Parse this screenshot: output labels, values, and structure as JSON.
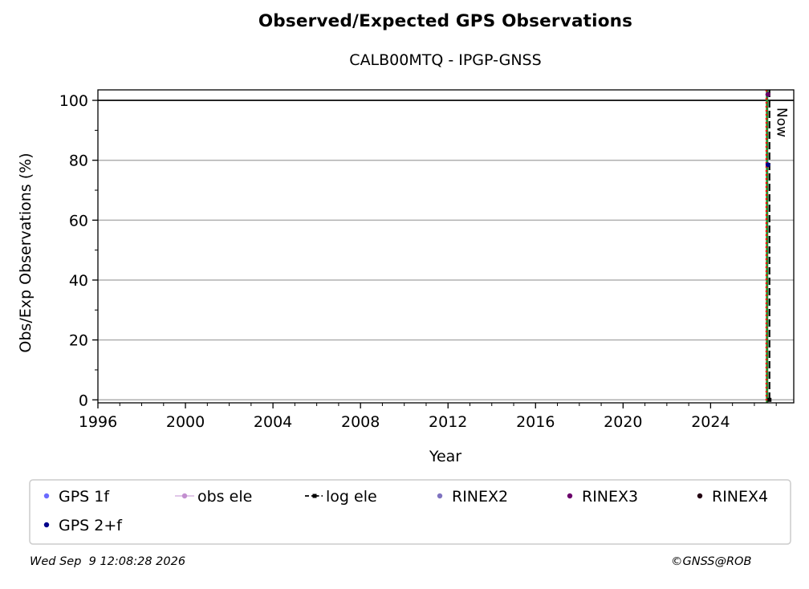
{
  "chart_data": {
    "type": "scatter",
    "title": "Observed/Expected GPS Observations",
    "subtitle": "CALB00MTQ - IPGP-GNSS",
    "xlabel": "Year",
    "ylabel": "Obs/Exp Observations (%)",
    "xlim": [
      1996,
      2027.8
    ],
    "ylim": [
      -1,
      103.5
    ],
    "x_ticks": [
      1996,
      2000,
      2004,
      2008,
      2012,
      2016,
      2020,
      2024
    ],
    "y_ticks": [
      0,
      20,
      40,
      60,
      80,
      100
    ],
    "grid": "horizontal",
    "reference_line": 100,
    "now_label": "Now",
    "now_x": 2026.69,
    "event_lines": [
      {
        "x": 2026.58,
        "color": "#2e8b2e",
        "style": "solid"
      },
      {
        "x": 2026.55,
        "color": "#ff0000",
        "style": "dotted"
      },
      {
        "x": 2026.69,
        "color": "#000000",
        "style": "dashed"
      }
    ],
    "series": [
      {
        "name": "GPS 1f",
        "color": "#6b6bff",
        "marker": "dot",
        "x": [],
        "y": []
      },
      {
        "name": "obs ele",
        "color": "#c38fd0",
        "marker": "dot-line",
        "x": [],
        "y": []
      },
      {
        "name": "log ele",
        "color": "#000000",
        "marker": "dash-dot-line",
        "x": [
          2026.69
        ],
        "y": [
          0
        ]
      },
      {
        "name": "RINEX2",
        "color": "#7f73c0",
        "marker": "dot",
        "x": [],
        "y": []
      },
      {
        "name": "RINEX3",
        "color": "#6b006b",
        "marker": "dot",
        "x": [
          2026.62
        ],
        "y": [
          102
        ]
      },
      {
        "name": "RINEX4",
        "color": "#220011",
        "marker": "dot",
        "x": [],
        "y": []
      },
      {
        "name": "GPS 2+f",
        "color": "#00008b",
        "marker": "dot",
        "x": [
          2026.62
        ],
        "y": [
          78.5
        ]
      }
    ],
    "legend_placement": "bottom"
  },
  "footer": {
    "date": "Wed Sep  9 12:08:28 2026",
    "copyright": "©GNSS@ROB"
  }
}
